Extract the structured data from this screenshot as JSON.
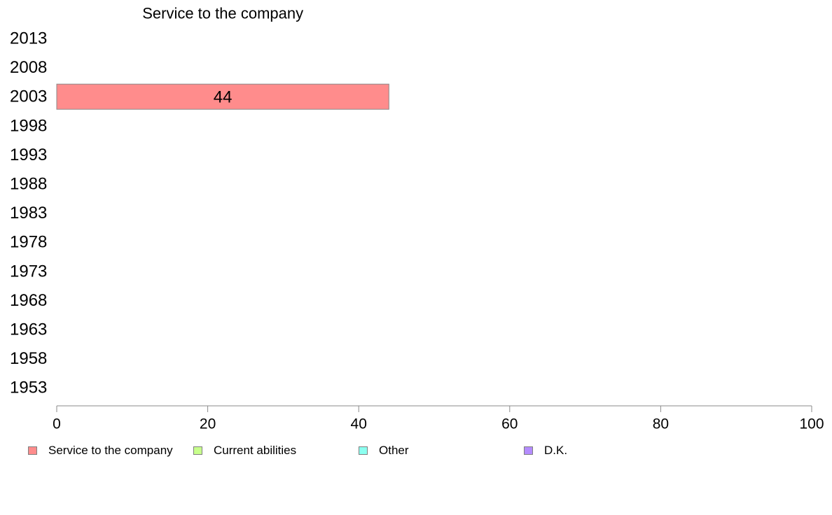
{
  "chart_data": {
    "type": "bar",
    "orientation": "horizontal",
    "categories": [
      "2013",
      "2008",
      "2003",
      "1998",
      "1993",
      "1988",
      "1983",
      "1978",
      "1973",
      "1968",
      "1963",
      "1958",
      "1953"
    ],
    "series": [
      {
        "name": "Service to the company",
        "color": "#ff8c8c",
        "values": [
          null,
          null,
          44,
          null,
          null,
          null,
          null,
          null,
          null,
          null,
          null,
          null,
          null
        ]
      },
      {
        "name": "Current abilities",
        "color": "#c8ff8c",
        "values": [
          null,
          null,
          null,
          null,
          null,
          null,
          null,
          null,
          null,
          null,
          null,
          null,
          null
        ]
      },
      {
        "name": "Other",
        "color": "#8cfff0",
        "values": [
          null,
          null,
          null,
          null,
          null,
          null,
          null,
          null,
          null,
          null,
          null,
          null,
          null
        ]
      },
      {
        "name": "D.K.",
        "color": "#b48cff",
        "values": [
          null,
          null,
          null,
          null,
          null,
          null,
          null,
          null,
          null,
          null,
          null,
          null,
          null
        ]
      }
    ],
    "data_labels": [
      {
        "category": "2003",
        "series": "Service to the company",
        "text": "44"
      }
    ],
    "annotations": [
      {
        "text": "Service to the company",
        "series": "Service to the company"
      }
    ],
    "xlim": [
      0,
      100
    ],
    "xticks": [
      "0",
      "20",
      "40",
      "60",
      "80",
      "100"
    ],
    "grid": false,
    "legend_position": "bottom"
  }
}
